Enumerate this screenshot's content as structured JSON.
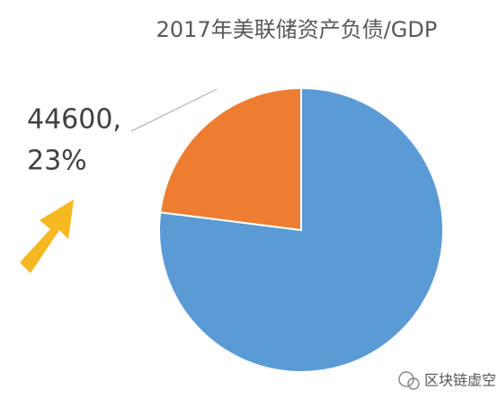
{
  "chart_data": {
    "type": "pie",
    "title": "2017年美联储资产负债/GDP",
    "values": [
      77,
      23
    ],
    "value_labels": [
      null,
      [
        "44600,",
        "23%"
      ]
    ],
    "colors": [
      "#5b9bd5",
      "#ed7d31"
    ]
  },
  "watermark": "区块链虚空"
}
